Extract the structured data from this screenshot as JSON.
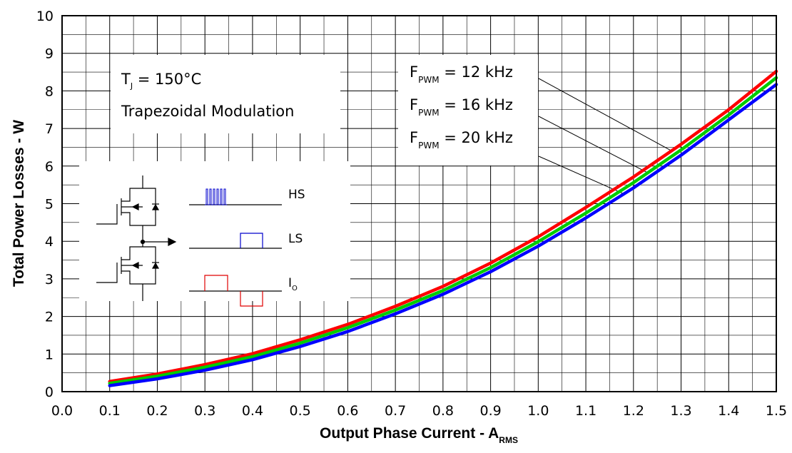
{
  "chart_data": {
    "type": "line",
    "xlabel": "Output Phase Current - A",
    "xlabel_sub": "RMS",
    "ylabel": "Total Power Losses - W",
    "xlim": [
      0.0,
      1.5
    ],
    "ylim": [
      0,
      10
    ],
    "x_ticks": [
      "0.0",
      "0.1",
      "0.2",
      "0.3",
      "0.4",
      "0.5",
      "0.6",
      "0.7",
      "0.8",
      "0.9",
      "1.0",
      "1.1",
      "1.2",
      "1.3",
      "1.4",
      "1.5"
    ],
    "y_ticks": [
      "0",
      "1",
      "2",
      "3",
      "4",
      "5",
      "6",
      "7",
      "8",
      "9",
      "10"
    ],
    "grid": true,
    "x": [
      0.1,
      0.2,
      0.3,
      0.4,
      0.5,
      0.6,
      0.7,
      0.8,
      0.9,
      1.0,
      1.1,
      1.2,
      1.3,
      1.4,
      1.5
    ],
    "series": [
      {
        "name": "12 kHz",
        "color": "#ff0000",
        "values": [
          0.27,
          0.47,
          0.72,
          1.01,
          1.38,
          1.79,
          2.27,
          2.8,
          3.42,
          4.12,
          4.9,
          5.71,
          6.58,
          7.5,
          8.52
        ]
      },
      {
        "name": "16 kHz",
        "color": "#00cc00",
        "values": [
          0.22,
          0.41,
          0.65,
          0.93,
          1.29,
          1.7,
          2.17,
          2.69,
          3.3,
          3.99,
          4.75,
          5.56,
          6.43,
          7.36,
          8.35
        ]
      },
      {
        "name": "20 kHz",
        "color": "#0000ff",
        "values": [
          0.16,
          0.34,
          0.57,
          0.85,
          1.2,
          1.6,
          2.07,
          2.59,
          3.19,
          3.87,
          4.62,
          5.42,
          6.29,
          7.23,
          8.17
        ]
      }
    ],
    "annotations": {
      "tj_main": "T",
      "tj_sub": "J",
      "tj_rest": " = 150°C",
      "modulation": "Trapezoidal Modulation",
      "fpwm_main": "F",
      "fpwm_sub": "PWM",
      "fpwm_rows": [
        " = 12 kHz",
        " = 16 kHz",
        " = 20 kHz"
      ]
    },
    "inset": {
      "hs_label": "HS",
      "ls_label": "LS",
      "io_main": "I",
      "io_sub": "O",
      "hs_color": "#0000cc",
      "ls_color": "#0000cc",
      "io_color": "#e00000"
    }
  }
}
